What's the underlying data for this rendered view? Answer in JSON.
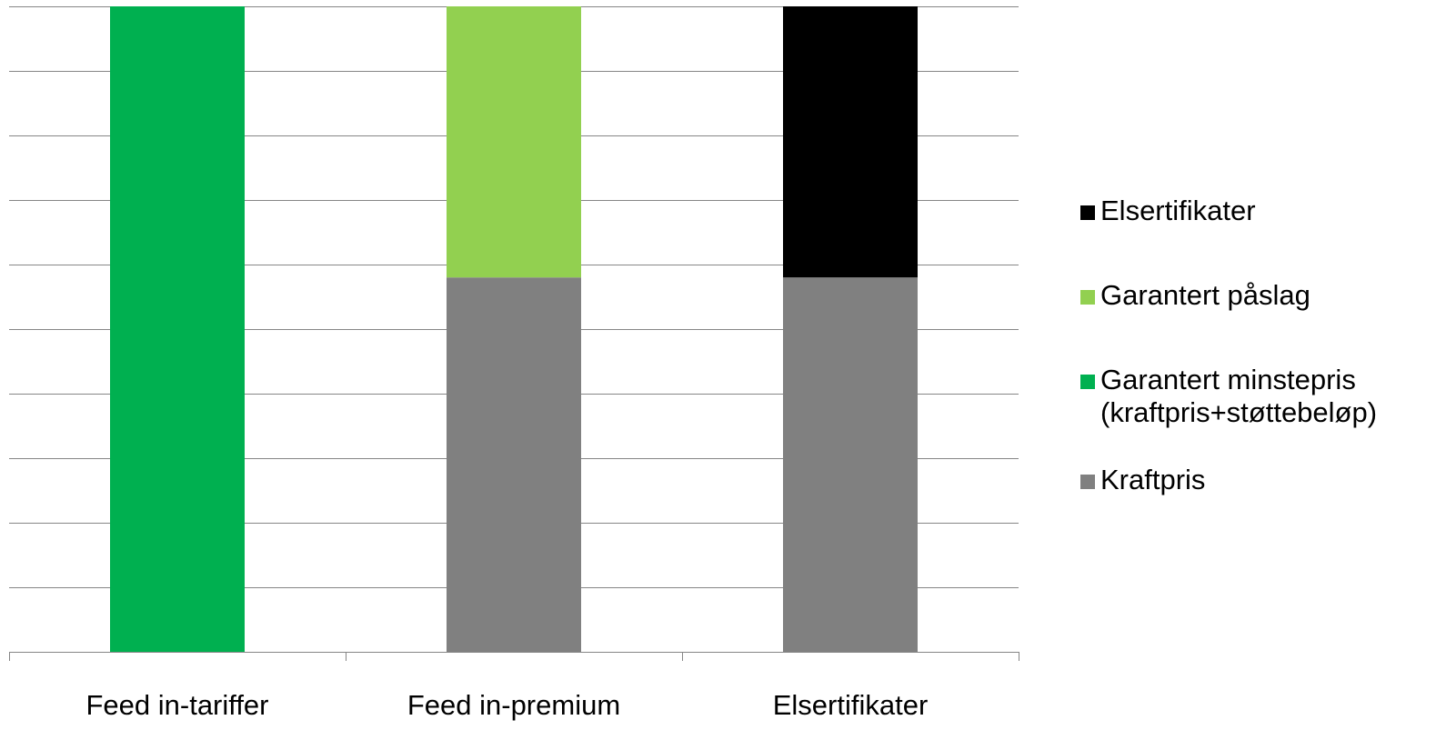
{
  "chart_data": {
    "type": "bar",
    "stacked": true,
    "categories": [
      "Feed in-tariffer",
      "Feed in-premium",
      "Elsertifikater"
    ],
    "series": [
      {
        "name": "Kraftpris",
        "color": "#808080",
        "values": [
          0,
          58,
          58
        ]
      },
      {
        "name": "Garantert minstepris\n(kraftpris+støttebeløp)",
        "color": "#00B050",
        "values": [
          100,
          0,
          0
        ]
      },
      {
        "name": "Garantert påslag",
        "color": "#92D050",
        "values": [
          0,
          42,
          0
        ]
      },
      {
        "name": "Elsertifikater",
        "color": "#000000",
        "values": [
          0,
          0,
          42
        ]
      }
    ],
    "ylim": [
      0,
      100
    ],
    "gridlines": 10,
    "grid": true,
    "legend_position": "right",
    "legend_order": [
      "Elsertifikater",
      "Garantert påslag",
      "Garantert minstepris\n(kraftpris+støttebeløp)",
      "Kraftpris"
    ],
    "title": "",
    "xlabel": "",
    "ylabel": ""
  }
}
